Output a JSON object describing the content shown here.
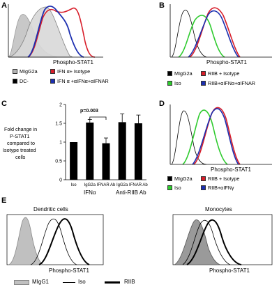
{
  "panels": {
    "A": {
      "label": "A",
      "xlabel": "Phospho-STAT1",
      "legend": [
        {
          "text": "MIgG2a",
          "color": "#b3b3b3"
        },
        {
          "text": "DC-",
          "color": "#000000"
        },
        {
          "text": "IFN α+ Isotype",
          "color": "#d81e2a"
        },
        {
          "text": "IFN α +αIFNα+αIFNAR",
          "color": "#1c2fb0"
        }
      ]
    },
    "B": {
      "label": "B",
      "xlabel": "Phospho-STAT1",
      "legend": [
        {
          "text": "MIgG2a",
          "color": "#000000"
        },
        {
          "text": "Iso",
          "color": "#2ecb2e"
        },
        {
          "text": "RIIB + Isotype",
          "color": "#d81e2a"
        },
        {
          "text": "RIIB+αIFNα+αIFNAR",
          "color": "#1c2fb0"
        }
      ]
    },
    "C": {
      "label": "C",
      "ylabel_lines": [
        "Fold change in",
        "P-STAT1",
        "compared to",
        "Isotype treated",
        "cells"
      ],
      "significance": "p=0.003",
      "group_labels": [
        "IFNα",
        "Anti-RIIB Ab"
      ]
    },
    "D": {
      "label": "D",
      "xlabel": "Phospho-STAT1",
      "legend": [
        {
          "text": "MIgG2a",
          "color": "#000000"
        },
        {
          "text": "Iso",
          "color": "#2ecb2e"
        },
        {
          "text": "RIIB + Isotype",
          "color": "#d81e2a"
        },
        {
          "text": "RIIB+αIFNγ",
          "color": "#1c2fb0"
        }
      ]
    },
    "E": {
      "label": "E",
      "left_title": "Dendritic cells",
      "right_title": "Monocytes",
      "xlabel": "Phospho-STAT1",
      "legend": [
        {
          "text": "MIgG1",
          "style": "filled-gray"
        },
        {
          "text": "Iso",
          "style": "thin-line"
        },
        {
          "text": "RIIB",
          "style": "thick-line"
        }
      ]
    }
  },
  "chart_data": {
    "type": "bar",
    "categories": [
      "Iso",
      "IgG2a",
      "IFNAR Ab",
      "IgG2a",
      "IFNAR Ab"
    ],
    "values": [
      1.0,
      1.52,
      0.97,
      1.53,
      1.5
    ],
    "errors": [
      0,
      0.08,
      0.14,
      0.22,
      0.22
    ],
    "ylim": [
      0,
      2
    ],
    "yticks": [
      0,
      0.5,
      1,
      1.5,
      2
    ],
    "ytick_labels": [
      "0",
      "0.5",
      "1",
      "1.5",
      "2"
    ],
    "bar_color": "#000000",
    "significance": {
      "between": [
        1,
        2
      ],
      "label": "p=0.003"
    }
  }
}
